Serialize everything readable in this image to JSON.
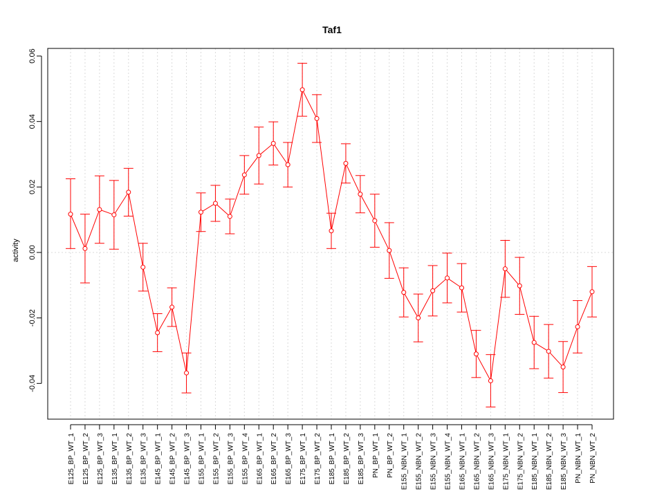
{
  "chart_data": {
    "type": "line",
    "title": "Taf1",
    "xlabel": "",
    "ylabel": "activity",
    "ylim": [
      -0.05,
      0.062
    ],
    "yticks": [
      -0.04,
      -0.02,
      0.0,
      0.02,
      0.04,
      0.06
    ],
    "ytick_labels": [
      "-0.04",
      "-0.02",
      "0.00",
      "0.02",
      "0.04",
      "0.06"
    ],
    "grid": true,
    "color": "#ff0000",
    "categories": [
      "E125_BP_WT_1",
      "E125_BP_WT_2",
      "E125_BP_WT_3",
      "E135_BP_WT_1",
      "E135_BP_WT_2",
      "E135_BP_WT_3",
      "E145_BP_WT_1",
      "E145_BP_WT_2",
      "E145_BP_WT_3",
      "E155_BP_WT_1",
      "E155_BP_WT_2",
      "E155_BP_WT_3",
      "E155_BP_WT_4",
      "E165_BP_WT_1",
      "E165_BP_WT_2",
      "E165_BP_WT_3",
      "E175_BP_WT_1",
      "E175_BP_WT_2",
      "E185_BP_WT_1",
      "E185_BP_WT_2",
      "E185_BP_WT_3",
      "PN_BP_WT_1",
      "PN_BP_WT_2",
      "E155_NBN_WT_1",
      "E155_NBN_WT_2",
      "E155_NBN_WT_3",
      "E155_NBN_WT_4",
      "E165_NBN_WT_1",
      "E165_NBN_WT_2",
      "E165_NBN_WT_3",
      "E175_NBN_WT_1",
      "E175_NBN_WT_2",
      "E185_NBN_WT_1",
      "E185_NBN_WT_2",
      "E185_NBN_WT_3",
      "PN_NBN_WT_1",
      "PN_NBN_WT_2"
    ],
    "values": [
      0.0117,
      0.0012,
      0.0131,
      0.0115,
      0.0184,
      -0.0045,
      -0.0245,
      -0.0167,
      -0.0368,
      0.0123,
      0.015,
      0.011,
      0.0237,
      0.0296,
      0.0333,
      0.0268,
      0.0497,
      0.0409,
      0.0066,
      0.0272,
      0.0178,
      0.0097,
      0.0006,
      -0.0122,
      -0.02,
      -0.0117,
      -0.0078,
      -0.0108,
      -0.031,
      -0.0392,
      -0.005,
      -0.0102,
      -0.0275,
      -0.0302,
      -0.035,
      -0.0227,
      -0.012
    ],
    "upper": [
      0.0225,
      0.0117,
      0.0234,
      0.022,
      0.0257,
      0.0028,
      -0.0187,
      -0.0108,
      -0.0307,
      0.0182,
      0.0205,
      0.0163,
      0.0296,
      0.0383,
      0.0399,
      0.0336,
      0.0578,
      0.0482,
      0.012,
      0.0332,
      0.0235,
      0.0178,
      0.0091,
      -0.0047,
      -0.0127,
      -0.004,
      -0.0002,
      -0.0034,
      -0.0238,
      -0.0312,
      0.0037,
      -0.0015,
      -0.0195,
      -0.022,
      -0.0272,
      -0.0147,
      -0.0043
    ],
    "lower": [
      0.0012,
      -0.0093,
      0.0028,
      0.001,
      0.0111,
      -0.0118,
      -0.0303,
      -0.0226,
      -0.0429,
      0.0064,
      0.0095,
      0.0057,
      0.0178,
      0.0209,
      0.0267,
      0.02,
      0.0416,
      0.0336,
      0.0012,
      0.0212,
      0.0121,
      0.0016,
      -0.0079,
      -0.0197,
      -0.0273,
      -0.0194,
      -0.0154,
      -0.0182,
      -0.0382,
      -0.0472,
      -0.0137,
      -0.0189,
      -0.0355,
      -0.0384,
      -0.0428,
      -0.0307,
      -0.0197
    ]
  }
}
